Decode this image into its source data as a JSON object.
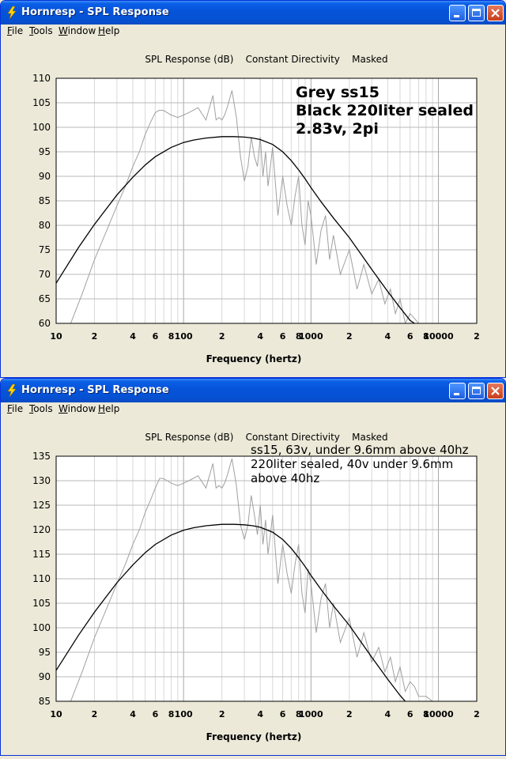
{
  "windows": [
    {
      "title": "Hornresp - SPL Response",
      "menu": [
        "File",
        "Tools",
        "Window",
        "Help"
      ],
      "title_buttons": [
        "minimize",
        "maximize",
        "close"
      ],
      "chart_title": "SPL Response (dB)    Constant Directivity    Masked",
      "xlabel": "Frequency (hertz)",
      "annotation": {
        "lines": [
          "Grey ss15",
          "Black 220liter sealed",
          "2.83v, 2pi"
        ]
      }
    },
    {
      "title": "Hornresp - SPL Response",
      "menu": [
        "File",
        "Tools",
        "Window",
        "Help"
      ],
      "title_buttons": [
        "minimize",
        "maximize",
        "close"
      ],
      "chart_title": "SPL Response (dB)    Constant Directivity    Masked",
      "xlabel": "Frequency (hertz)",
      "annotation": {
        "lines": [
          "ss15, 63v, under 9.6mm above 40hz",
          "220liter sealed, 40v under 9.6mm",
          "above 40hz"
        ]
      }
    }
  ],
  "chart_data": [
    {
      "type": "line",
      "title": "SPL Response (dB)    Constant Directivity    Masked",
      "xlabel": "Frequency (hertz)",
      "ylabel": "",
      "xscale": "log",
      "xlim": [
        10,
        20000
      ],
      "ylim": [
        60,
        110
      ],
      "yticks": [
        60,
        65,
        70,
        75,
        80,
        85,
        90,
        95,
        100,
        105,
        110
      ],
      "xtick_labels": [
        {
          "x": 10,
          "label": "10"
        },
        {
          "x": 20,
          "label": "2"
        },
        {
          "x": 40,
          "label": "4"
        },
        {
          "x": 60,
          "label": "6"
        },
        {
          "x": 80,
          "label": "8"
        },
        {
          "x": 100,
          "label": "100"
        },
        {
          "x": 200,
          "label": "2"
        },
        {
          "x": 400,
          "label": "4"
        },
        {
          "x": 600,
          "label": "6"
        },
        {
          "x": 800,
          "label": "8"
        },
        {
          "x": 1000,
          "label": "1000"
        },
        {
          "x": 2000,
          "label": "2"
        },
        {
          "x": 4000,
          "label": "4"
        },
        {
          "x": 6000,
          "label": "6"
        },
        {
          "x": 8000,
          "label": "8"
        },
        {
          "x": 10000,
          "label": "10000"
        },
        {
          "x": 20000,
          "label": "2"
        }
      ],
      "grid": true,
      "series": [
        {
          "color": "#a0a0a0",
          "x": [
            13,
            16,
            20,
            25,
            30,
            35,
            40,
            45,
            50,
            55,
            60,
            65,
            70,
            80,
            90,
            100,
            110,
            130,
            150,
            170,
            180,
            190,
            200,
            210,
            220,
            240,
            260,
            280,
            300,
            320,
            340,
            360,
            380,
            400,
            420,
            440,
            460,
            480,
            500,
            550,
            600,
            650,
            700,
            750,
            800,
            850,
            900,
            950,
            1000,
            1100,
            1200,
            1300,
            1400,
            1500,
            1700,
            2000,
            2300,
            2600,
            3000,
            3400,
            3800,
            4200,
            4600,
            5000,
            5500,
            6000,
            6500,
            7000,
            8000,
            9000
          ],
          "y": [
            60,
            66,
            73,
            79,
            84,
            88,
            92,
            95,
            98.5,
            101,
            103,
            103.5,
            103.4,
            102.5,
            102,
            102.5,
            103,
            104,
            101.5,
            106.5,
            101.5,
            102,
            101.5,
            102.5,
            104,
            107.5,
            102,
            94,
            89,
            92,
            98,
            94,
            92,
            98,
            90,
            95,
            88,
            92,
            96,
            82,
            90,
            84,
            80,
            86,
            90,
            80,
            76,
            85,
            82,
            72,
            79,
            82,
            73,
            78,
            70,
            75,
            67,
            72,
            66,
            69,
            64,
            67,
            62,
            65,
            60,
            62,
            61,
            60,
            60,
            60
          ]
        },
        {
          "color": "#000000",
          "x": [
            10,
            15,
            20,
            30,
            40,
            50,
            60,
            80,
            100,
            120,
            150,
            200,
            250,
            300,
            350,
            400,
            500,
            600,
            700,
            800,
            900,
            1000,
            1200,
            1500,
            2000,
            2500,
            3000,
            4000,
            5000,
            6000,
            6500
          ],
          "y": [
            68.2,
            75.5,
            80.2,
            86.2,
            89.8,
            92.3,
            94,
            95.9,
            96.9,
            97.4,
            97.8,
            98.1,
            98.1,
            98,
            97.8,
            97.5,
            96.5,
            95,
            93.2,
            91.3,
            89.5,
            87.7,
            84.8,
            81.5,
            77.5,
            73.9,
            71,
            66.5,
            63.2,
            60.6,
            60
          ]
        }
      ]
    },
    {
      "type": "line",
      "title": "SPL Response (dB)    Constant Directivity    Masked",
      "xlabel": "Frequency (hertz)",
      "ylabel": "",
      "xscale": "log",
      "xlim": [
        10,
        20000
      ],
      "ylim": [
        85,
        135
      ],
      "yticks": [
        85,
        90,
        95,
        100,
        105,
        110,
        115,
        120,
        125,
        130,
        135
      ],
      "xtick_labels": [
        {
          "x": 10,
          "label": "10"
        },
        {
          "x": 20,
          "label": "2"
        },
        {
          "x": 40,
          "label": "4"
        },
        {
          "x": 60,
          "label": "6"
        },
        {
          "x": 80,
          "label": "8"
        },
        {
          "x": 100,
          "label": "100"
        },
        {
          "x": 200,
          "label": "2"
        },
        {
          "x": 400,
          "label": "4"
        },
        {
          "x": 600,
          "label": "6"
        },
        {
          "x": 800,
          "label": "8"
        },
        {
          "x": 1000,
          "label": "1000"
        },
        {
          "x": 2000,
          "label": "2"
        },
        {
          "x": 4000,
          "label": "4"
        },
        {
          "x": 6000,
          "label": "6"
        },
        {
          "x": 8000,
          "label": "8"
        },
        {
          "x": 10000,
          "label": "10000"
        },
        {
          "x": 20000,
          "label": "2"
        }
      ],
      "grid": true,
      "series": [
        {
          "color": "#a0a0a0",
          "x": [
            13,
            16,
            20,
            25,
            30,
            35,
            40,
            45,
            50,
            55,
            60,
            65,
            70,
            80,
            90,
            100,
            110,
            130,
            150,
            170,
            180,
            190,
            200,
            210,
            220,
            240,
            260,
            280,
            300,
            320,
            340,
            360,
            380,
            400,
            420,
            440,
            460,
            480,
            500,
            550,
            600,
            650,
            700,
            750,
            800,
            850,
            900,
            950,
            1000,
            1100,
            1200,
            1300,
            1400,
            1500,
            1700,
            2000,
            2300,
            2600,
            3000,
            3400,
            3800,
            4200,
            4600,
            5000,
            5500,
            6000,
            6500,
            7000,
            8000,
            9000
          ],
          "y": [
            85,
            91,
            98,
            104,
            109,
            113,
            117,
            120,
            123.5,
            126,
            128.5,
            130.5,
            130.4,
            129.5,
            129,
            129.5,
            130,
            131,
            128.5,
            133.5,
            128.5,
            129,
            128.5,
            129.5,
            131,
            134.5,
            129,
            121,
            118,
            121,
            127,
            123,
            119,
            125,
            117,
            122,
            115,
            119,
            123,
            109,
            117,
            111,
            107,
            113,
            117,
            107,
            103,
            112,
            109,
            99,
            106,
            109,
            100,
            105,
            97,
            102,
            94,
            99,
            93,
            96,
            91,
            94,
            89,
            92,
            87,
            89,
            88,
            86,
            86,
            85
          ]
        },
        {
          "color": "#000000",
          "x": [
            10,
            15,
            20,
            30,
            40,
            50,
            60,
            80,
            100,
            120,
            150,
            200,
            250,
            300,
            350,
            400,
            500,
            600,
            700,
            800,
            900,
            1000,
            1200,
            1500,
            2000,
            2500,
            3000,
            4000,
            5000,
            5500
          ],
          "y": [
            91.3,
            98.5,
            103.2,
            109.2,
            112.8,
            115.3,
            117,
            118.9,
            119.9,
            120.4,
            120.8,
            121.1,
            121.1,
            121,
            120.8,
            120.5,
            119.5,
            118,
            116.2,
            114.3,
            112.5,
            110.7,
            107.8,
            104.5,
            100.5,
            96.9,
            94,
            89.5,
            86.2,
            85
          ]
        }
      ]
    }
  ]
}
